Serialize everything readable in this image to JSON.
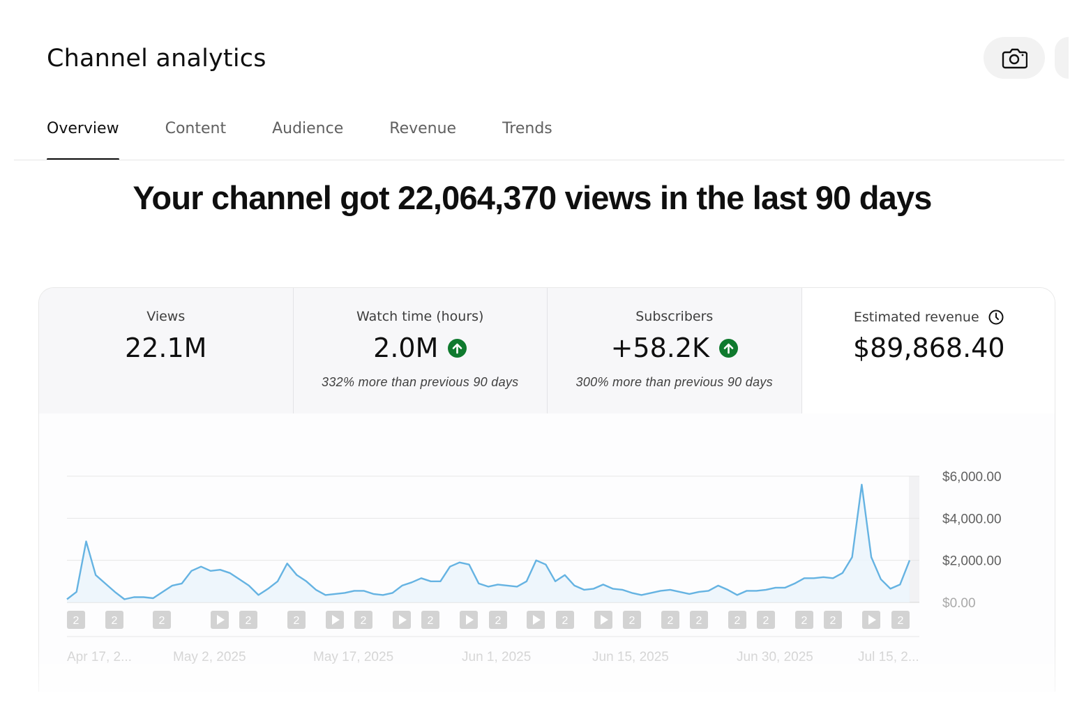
{
  "header": {
    "title": "Channel analytics",
    "camera_icon": "camera-icon"
  },
  "tabs": [
    {
      "label": "Overview",
      "active": true
    },
    {
      "label": "Content",
      "active": false
    },
    {
      "label": "Audience",
      "active": false
    },
    {
      "label": "Revenue",
      "active": false
    },
    {
      "label": "Trends",
      "active": false
    }
  ],
  "headline": "Your channel got 22,064,370 views in the last 90 days",
  "metrics": [
    {
      "label": "Views",
      "value": "22.1M",
      "note": "",
      "trend": ""
    },
    {
      "label": "Watch time (hours)",
      "value": "2.0M",
      "note": "332% more than previous 90 days",
      "trend": "up"
    },
    {
      "label": "Subscribers",
      "value": "+58.2K",
      "note": "300% more than previous 90 days",
      "trend": "up"
    },
    {
      "label": "Estimated revenue",
      "value": "$89,868.40",
      "note": "",
      "trend": "",
      "icon": "clock-icon"
    }
  ],
  "colors": {
    "line": "#65b3e2",
    "area": "#eaf4fb",
    "up": "#0f7a2e",
    "axis_text": "#606060",
    "faded_text": "#cfcfcf"
  },
  "chart_data": {
    "type": "area",
    "y_tick_labels": [
      "$6,000.00",
      "$4,000.00",
      "$2,000.00",
      "$0.00"
    ],
    "ylim": [
      0,
      6000
    ],
    "x_tick_labels": [
      "Apr 17, 2...",
      "May 2, 2025",
      "May 17, 2025",
      "Jun 1, 2025",
      "Jun 15, 2025",
      "Jun 30, 2025",
      "Jul 15, 2..."
    ],
    "values": [
      150,
      500,
      2900,
      1300,
      900,
      500,
      150,
      250,
      250,
      200,
      500,
      800,
      900,
      1500,
      1700,
      1500,
      1550,
      1400,
      1100,
      800,
      350,
      650,
      1000,
      1850,
      1300,
      1000,
      600,
      350,
      400,
      450,
      550,
      550,
      400,
      350,
      450,
      800,
      950,
      1150,
      1000,
      1000,
      1700,
      1900,
      1800,
      900,
      750,
      850,
      800,
      750,
      1000,
      2000,
      1800,
      1000,
      1300,
      800,
      600,
      650,
      850,
      650,
      600,
      450,
      350,
      450,
      550,
      600,
      500,
      400,
      500,
      550,
      800,
      600,
      350,
      550,
      550,
      600,
      700,
      700,
      900,
      1150,
      1150,
      1200,
      1150,
      1400,
      2150,
      5600,
      2150,
      1100,
      650,
      850,
      2000
    ],
    "markers": [
      "2",
      "2",
      "2",
      "play",
      "2",
      "2",
      "play",
      "2",
      "play",
      "2",
      "play",
      "2",
      "play",
      "2",
      "play",
      "2",
      "2",
      "2",
      "2",
      "2",
      "2",
      "2",
      "play",
      "2"
    ]
  }
}
